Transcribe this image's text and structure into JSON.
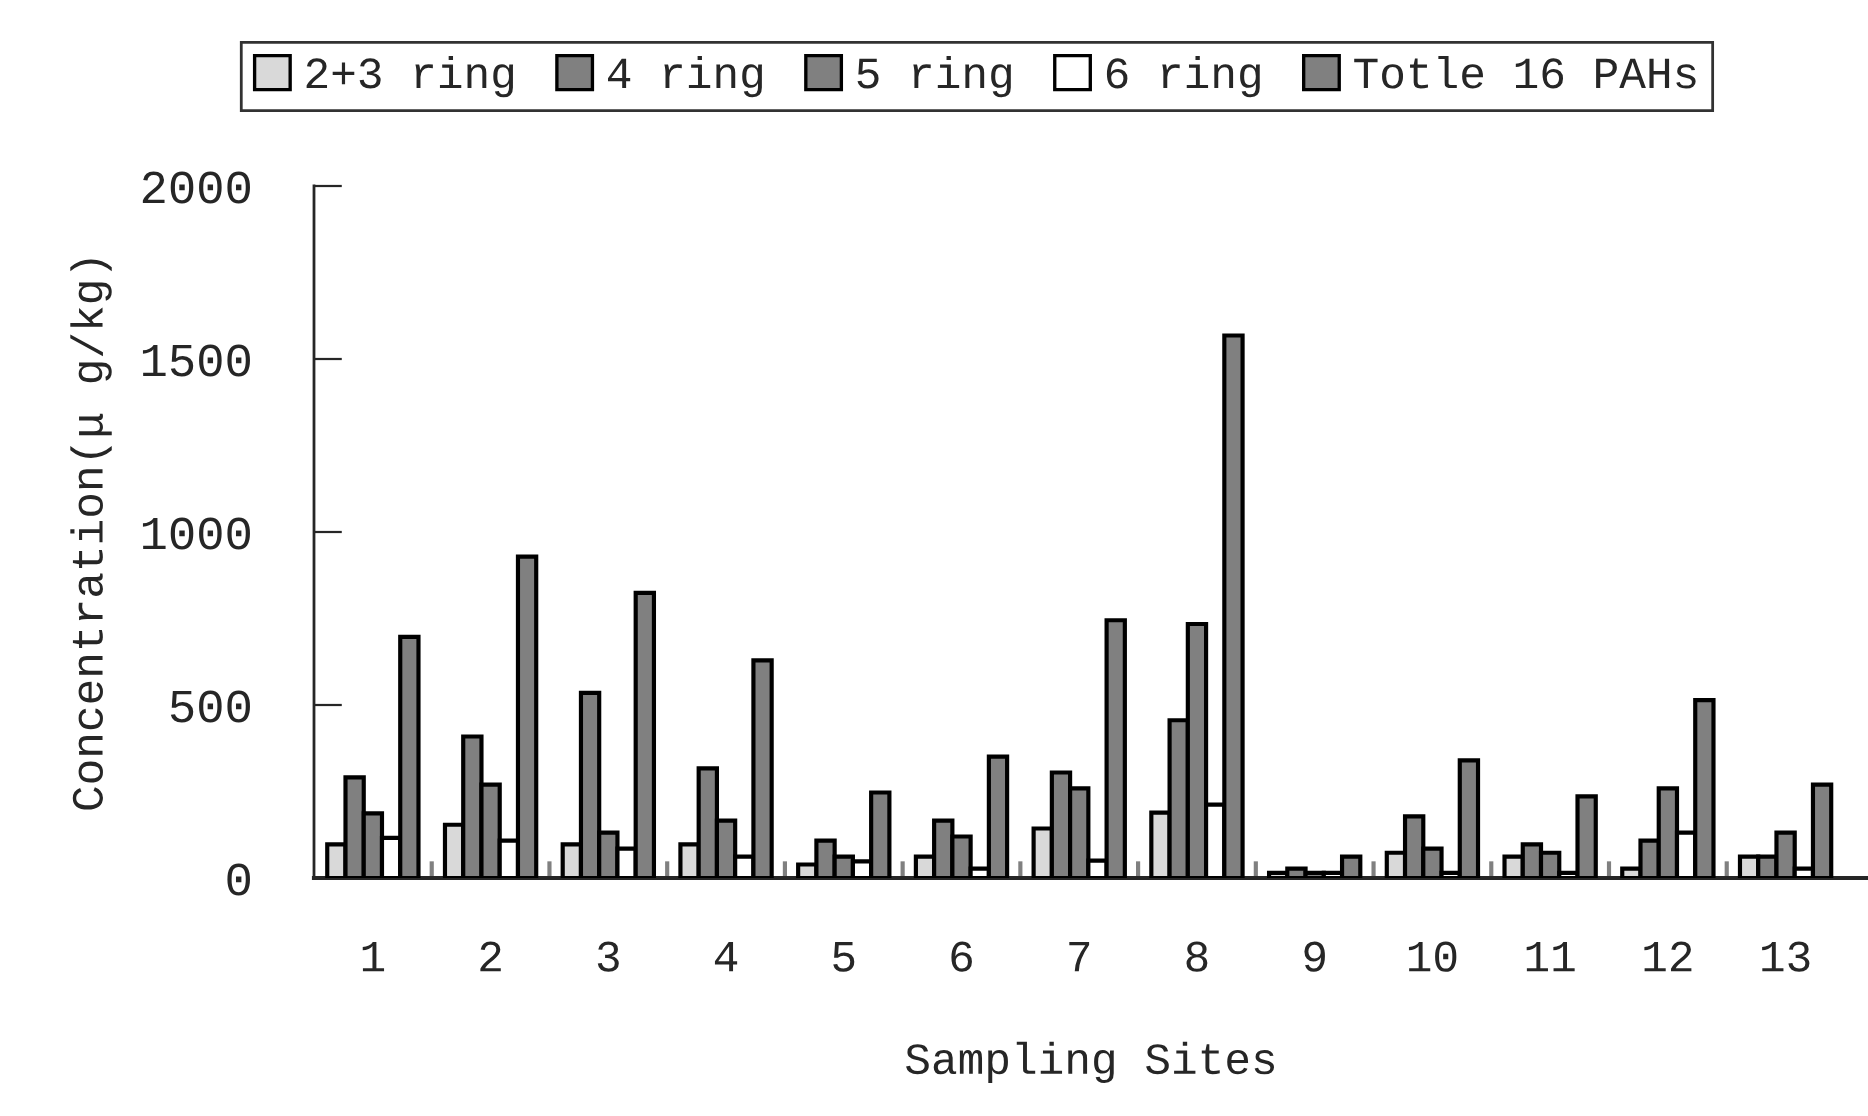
{
  "chart_data": {
    "type": "bar",
    "xlabel": "Sampling Sites",
    "ylabel": "Concentration(μ g/kg)",
    "categories": [
      "1",
      "2",
      "3",
      "4",
      "5",
      "6",
      "7",
      "8",
      "9",
      "10",
      "11",
      "12",
      "13"
    ],
    "series": [
      {
        "name": "2+3 ring",
        "color": "#d9d9d9",
        "values": [
          97,
          154,
          97,
          97,
          39,
          62,
          143,
          189,
          15,
          73,
          62,
          27,
          62
        ]
      },
      {
        "name": "4 ring",
        "color": "#808080",
        "values": [
          291,
          409,
          535,
          317,
          108,
          166,
          305,
          456,
          27,
          178,
          97,
          108,
          62
        ]
      },
      {
        "name": "5 ring",
        "color": "#808080",
        "values": [
          187,
          270,
          131,
          166,
          62,
          120,
          259,
          734,
          15,
          85,
          73,
          259,
          131
        ]
      },
      {
        "name": "6 ring",
        "color": "#ffffff",
        "values": [
          116,
          108,
          85,
          62,
          48,
          27,
          50,
          212,
          15,
          15,
          15,
          131,
          27
        ]
      },
      {
        "name": "Totle 16 PAHs",
        "color": "#808080",
        "values": [
          697,
          929,
          824,
          629,
          247,
          351,
          745,
          1568,
          62,
          340,
          236,
          514,
          270
        ]
      }
    ],
    "ylim": [
      0,
      2000
    ],
    "yticks": [
      0,
      500,
      1000,
      1500,
      2000
    ],
    "grid": false,
    "legend": "top"
  }
}
